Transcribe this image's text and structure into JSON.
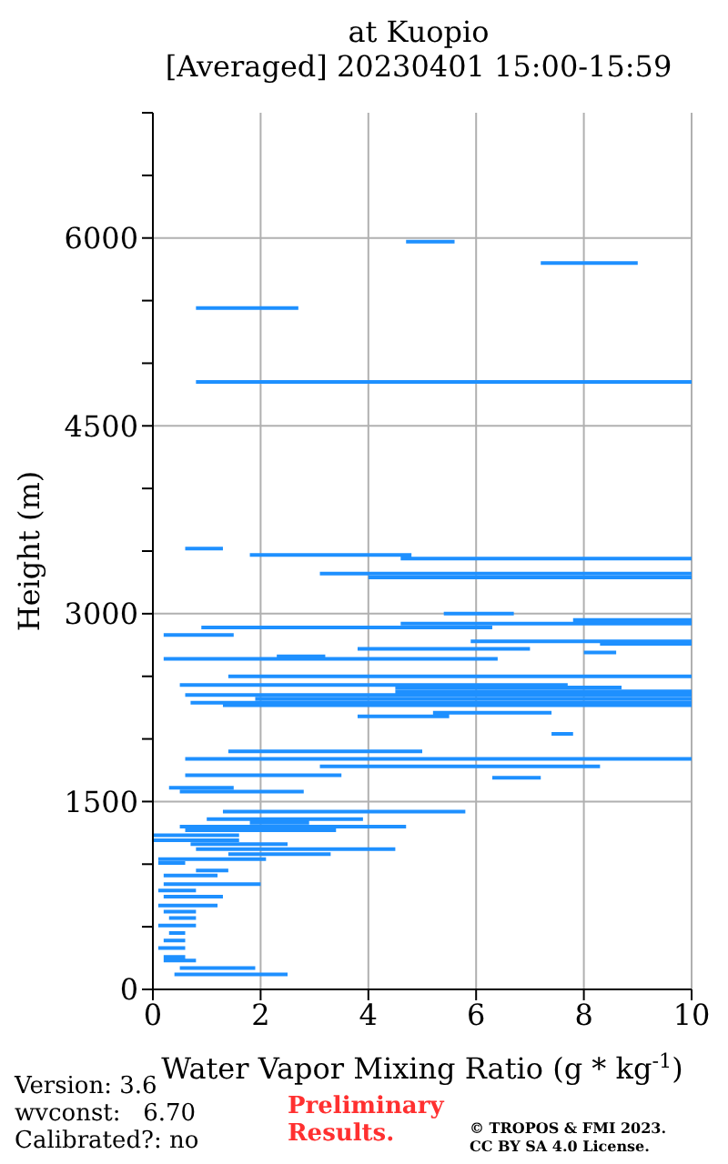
{
  "chart_data": {
    "type": "line",
    "orientation": "horizontal",
    "title": "at Kuopio",
    "subtitle": "[Averaged] 20230401 15:00-15:59",
    "xlabel": "Water Vapor Mixing Ratio (g * kg$^{-1}$)",
    "ylabel": "Height (m)",
    "xlim": [
      0,
      10
    ],
    "xticks": [
      0,
      2,
      4,
      6,
      8,
      10
    ],
    "ylim": [
      0,
      7000
    ],
    "yticks": [
      0,
      {
        "value": 500,
        "label": null
      },
      {
        "value": 1000,
        "label": null
      },
      1500,
      {
        "value": 2000,
        "label": null
      },
      {
        "value": 2500,
        "label": null
      },
      3000,
      {
        "value": 3500,
        "label": null
      },
      {
        "value": 4000,
        "label": null
      },
      4500,
      {
        "value": 5000,
        "label": null
      },
      {
        "value": 5500,
        "label": null
      },
      6000,
      {
        "value": 6500,
        "label": null
      },
      {
        "value": 7000,
        "label": null
      }
    ],
    "grid": true,
    "annotations": [
      "Version: 3.6",
      "wvconst:   6.70",
      "Calibrated?: no",
      "Preliminary Results.",
      "© TROPOS & FMI 2023. CC BY SA 4.0 License."
    ],
    "series": [
      {
        "color": "#1e90ff",
        "x": [
          120,
          120,
          null,
          170,
          170,
          null,
          230,
          230,
          null,
          260,
          260,
          null,
          330,
          330,
          null,
          390,
          390,
          null,
          450,
          450,
          null,
          510,
          510,
          null,
          570,
          570,
          null,
          620,
          620,
          null,
          670,
          670,
          null,
          740,
          740,
          null,
          790,
          790,
          null,
          840,
          840,
          null,
          910,
          910,
          null,
          950,
          950,
          null,
          1010,
          1010,
          null,
          1040,
          1040,
          null,
          1080,
          1080,
          null,
          1120,
          1120,
          null,
          1160,
          1160,
          null,
          1190,
          1190,
          null,
          1230,
          1230,
          null,
          1270,
          1270,
          null,
          1300,
          1300,
          null,
          1330,
          1330,
          null,
          1360,
          1360,
          null,
          1420,
          1420,
          null,
          1580,
          1580,
          null,
          1610,
          1610,
          null,
          1690,
          1690,
          null,
          1710,
          1710,
          null,
          1780,
          1780,
          null,
          1840,
          1840,
          null,
          1900,
          1900,
          null,
          2040,
          2040,
          null,
          2180,
          2180,
          null,
          2210,
          2210,
          null,
          2270,
          2270,
          null,
          2290,
          2290,
          null,
          2320,
          2320,
          null,
          2350,
          2350,
          null,
          2380,
          2380,
          null,
          2410,
          2410,
          null,
          2430,
          2430,
          null,
          2500,
          2500,
          null,
          2640,
          2640,
          null,
          2660,
          2660,
          null,
          2690,
          2690,
          null,
          2720,
          2720,
          null,
          2760,
          2760,
          null,
          2780,
          2780,
          null,
          2830,
          2830,
          null,
          2890,
          2890,
          null,
          2920,
          2920,
          null,
          2950,
          2950,
          null,
          3000,
          3000,
          null,
          3290,
          3290,
          null,
          3320,
          3320,
          null,
          3440,
          3440,
          null,
          3470,
          3470,
          null,
          3520,
          3520,
          null,
          4850,
          4850,
          null,
          5440,
          5440,
          null,
          5800,
          5800,
          null,
          5970,
          5970
        ],
        "values": [
          0.4,
          2.5,
          null,
          0.5,
          1.9,
          null,
          0.2,
          0.8,
          null,
          0.2,
          0.6,
          null,
          0.1,
          0.6,
          null,
          0.2,
          0.6,
          null,
          0.3,
          0.6,
          null,
          0.1,
          0.8,
          null,
          0.3,
          0.8,
          null,
          0.2,
          0.8,
          null,
          0.1,
          1.2,
          null,
          0.2,
          1.3,
          null,
          0.1,
          0.8,
          null,
          0.2,
          2.0,
          null,
          0.2,
          1.2,
          null,
          0.8,
          1.4,
          null,
          0.1,
          0.6,
          null,
          0.1,
          2.1,
          null,
          1.4,
          3.3,
          null,
          0.8,
          4.5,
          null,
          0.7,
          2.5,
          null,
          0.0,
          1.6,
          null,
          0.0,
          1.6,
          null,
          0.6,
          3.4,
          null,
          0.5,
          4.7,
          null,
          1.8,
          2.9,
          null,
          1.0,
          3.9,
          null,
          1.3,
          5.8,
          null,
          0.5,
          2.8,
          null,
          0.3,
          1.5,
          null,
          6.3,
          7.2,
          null,
          0.6,
          3.5,
          null,
          3.1,
          8.3,
          null,
          0.6,
          10,
          null,
          1.4,
          5.0,
          null,
          7.4,
          7.8,
          null,
          3.8,
          5.5,
          null,
          5.2,
          7.4,
          null,
          1.3,
          10,
          null,
          0.7,
          10,
          null,
          1.9,
          10,
          null,
          0.6,
          10,
          null,
          4.5,
          10,
          null,
          4.5,
          8.7,
          null,
          0.5,
          7.7,
          null,
          1.4,
          10,
          null,
          0.2,
          6.4,
          null,
          2.3,
          3.2,
          null,
          8.0,
          8.6,
          null,
          3.8,
          7.0,
          null,
          8.3,
          10,
          null,
          5.9,
          10,
          null,
          0.2,
          1.5,
          null,
          0.9,
          6.3,
          null,
          4.6,
          10,
          null,
          7.8,
          10,
          null,
          5.4,
          6.7,
          null,
          4.0,
          10,
          null,
          3.1,
          10,
          null,
          4.6,
          10,
          null,
          1.8,
          4.8,
          null,
          0.6,
          1.3,
          null,
          0.8,
          10,
          null,
          0.8,
          2.7,
          null,
          7.2,
          9.0,
          null,
          4.7,
          5.6
        ]
      }
    ]
  }
}
